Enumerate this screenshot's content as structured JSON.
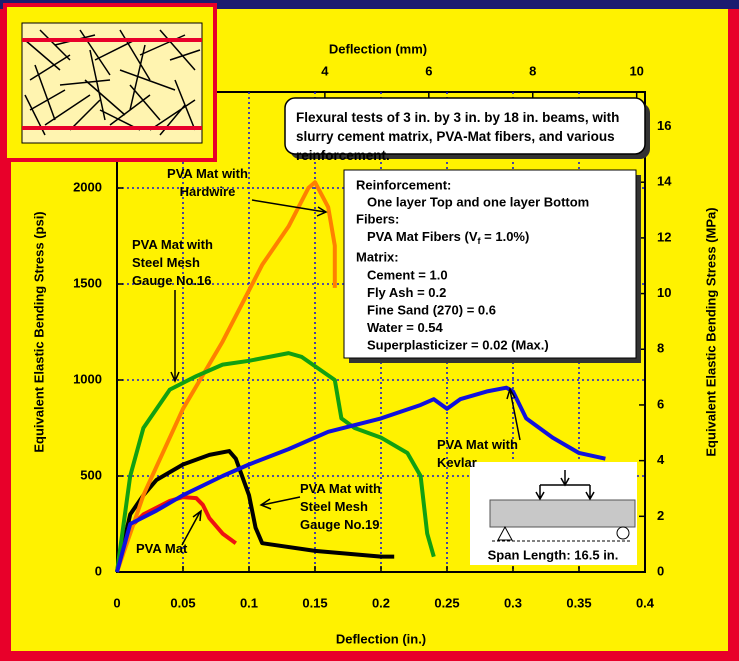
{
  "chart_data": {
    "type": "line",
    "xlabel": "Deflection (in.)",
    "x2label": "Deflection (mm)",
    "ylabel": "Equivalent Elastic Bending Stress (psi)",
    "y2label": "Equivalent Elastic Bending Stress (MPa)",
    "xlim": [
      0,
      0.4
    ],
    "xticks": [
      0,
      0.05,
      0.1,
      0.15,
      0.2,
      0.25,
      0.3,
      0.35,
      0.4
    ],
    "x2lim": [
      0,
      10.16
    ],
    "x2ticks": [
      4,
      6,
      8,
      10
    ],
    "ylim": [
      0,
      2500
    ],
    "yticks": [
      0,
      500,
      1000,
      1500,
      2000
    ],
    "y2lim": [
      0,
      17.24
    ],
    "y2ticks": [
      0,
      2,
      4,
      6,
      8,
      10,
      12,
      14,
      16
    ],
    "grid": true,
    "series": [
      {
        "name": "PVA Mat",
        "color": "#ee1111",
        "x": [
          0,
          0.005,
          0.02,
          0.04,
          0.05,
          0.06,
          0.065,
          0.07,
          0.08,
          0.09
        ],
        "values": [
          0,
          200,
          300,
          370,
          390,
          385,
          350,
          280,
          200,
          150
        ]
      },
      {
        "name": "PVA Mat with Steel Mesh Gauge No.19",
        "color": "#000000",
        "x": [
          0,
          0.01,
          0.02,
          0.03,
          0.05,
          0.07,
          0.085,
          0.09,
          0.1,
          0.105,
          0.11,
          0.15,
          0.2,
          0.21
        ],
        "values": [
          0,
          300,
          400,
          480,
          560,
          610,
          630,
          590,
          400,
          230,
          150,
          110,
          80,
          80
        ]
      },
      {
        "name": "PVA Mat with Hardwire",
        "color": "#ff8000",
        "x": [
          0,
          0.02,
          0.05,
          0.08,
          0.11,
          0.13,
          0.145,
          0.15,
          0.16,
          0.165,
          0.165
        ],
        "values": [
          0,
          400,
          850,
          1200,
          1600,
          1800,
          2000,
          2030,
          1900,
          1700,
          1480
        ]
      },
      {
        "name": "PVA Mat with Steel Mesh Gauge No.16",
        "color": "#11a011",
        "x": [
          0,
          0.01,
          0.02,
          0.04,
          0.06,
          0.08,
          0.1,
          0.13,
          0.14,
          0.165,
          0.17,
          0.18,
          0.2,
          0.22,
          0.23,
          0.235,
          0.24
        ],
        "values": [
          0,
          500,
          750,
          950,
          1020,
          1080,
          1100,
          1140,
          1120,
          1000,
          800,
          750,
          700,
          620,
          500,
          200,
          80
        ]
      },
      {
        "name": "PVA Mat with Kevlar",
        "color": "#1111dd",
        "x": [
          0,
          0.01,
          0.03,
          0.05,
          0.08,
          0.1,
          0.13,
          0.16,
          0.2,
          0.23,
          0.24,
          0.25,
          0.26,
          0.28,
          0.295,
          0.3,
          0.31,
          0.33,
          0.35,
          0.37
        ],
        "values": [
          0,
          250,
          320,
          400,
          500,
          560,
          640,
          730,
          800,
          870,
          900,
          850,
          900,
          940,
          960,
          940,
          800,
          700,
          620,
          590
        ]
      }
    ],
    "note": "Flexural tests of 3 in. by 3 in.  by 18 in. beams, with slurry cement matrix, PVA-Mat fibers, and various reinforcement.",
    "info": {
      "reinforcement": "Reinforcement:",
      "reinforcement_detail": "One layer Top and one layer Bottom",
      "fibers": "Fibers:",
      "fibers_detail": {
        "text": "PVA Mat Fibers (V",
        "sub": "f",
        "after": " = 1.0%)"
      },
      "matrix": "Matrix:",
      "matrix_items": [
        "Cement = 1.0",
        "Fly Ash = 0.2",
        "Fine Sand (270) = 0.6",
        "Water = 0.54",
        "Superplasticizer = 0.02 (Max.)"
      ]
    },
    "span": "Span Length: 16.5 in."
  }
}
